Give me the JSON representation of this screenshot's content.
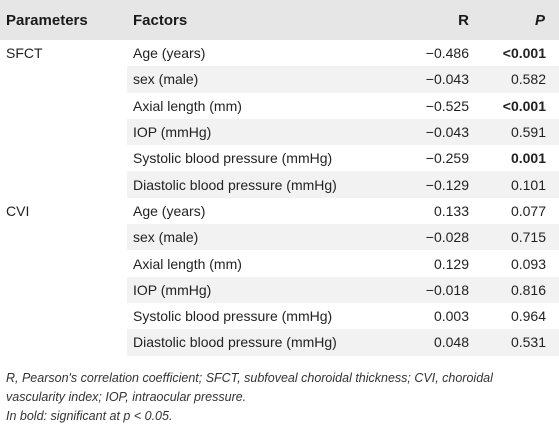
{
  "table": {
    "headers": {
      "parameters": "Parameters",
      "factors": "Factors",
      "r": "R",
      "p": "P"
    },
    "rows": [
      {
        "parameter": "SFCT",
        "factor": "Age (years)",
        "r": "−0.486",
        "p": "<0.001",
        "p_bold": true
      },
      {
        "parameter": "",
        "factor": "sex (male)",
        "r": "−0.043",
        "p": "0.582",
        "p_bold": false
      },
      {
        "parameter": "",
        "factor": "Axial length (mm)",
        "r": "−0.525",
        "p": "<0.001",
        "p_bold": true
      },
      {
        "parameter": "",
        "factor": "IOP (mmHg)",
        "r": "−0.043",
        "p": "0.591",
        "p_bold": false
      },
      {
        "parameter": "",
        "factor": "Systolic blood pressure (mmHg)",
        "r": "−0.259",
        "p": "0.001",
        "p_bold": true
      },
      {
        "parameter": "",
        "factor": "Diastolic blood pressure (mmHg)",
        "r": "−0.129",
        "p": "0.101",
        "p_bold": false
      },
      {
        "parameter": "CVI",
        "factor": "Age (years)",
        "r": "0.133",
        "p": "0.077",
        "p_bold": false
      },
      {
        "parameter": "",
        "factor": "sex (male)",
        "r": "−0.028",
        "p": "0.715",
        "p_bold": false
      },
      {
        "parameter": "",
        "factor": "Axial length (mm)",
        "r": "0.129",
        "p": "0.093",
        "p_bold": false
      },
      {
        "parameter": "",
        "factor": "IOP (mmHg)",
        "r": "−0.018",
        "p": "0.816",
        "p_bold": false
      },
      {
        "parameter": "",
        "factor": "Systolic blood pressure (mmHg)",
        "r": "0.003",
        "p": "0.964",
        "p_bold": false
      },
      {
        "parameter": "",
        "factor": "Diastolic blood pressure (mmHg)",
        "r": "0.048",
        "p": "0.531",
        "p_bold": false
      }
    ]
  },
  "footnotes": {
    "abbreviations": "R, Pearson's correlation coefficient; SFCT, subfoveal choroidal thickness; CVI, choroidal vascularity index; IOP, intraocular pressure.",
    "bold_note": "In bold: significant at p < 0.05."
  }
}
